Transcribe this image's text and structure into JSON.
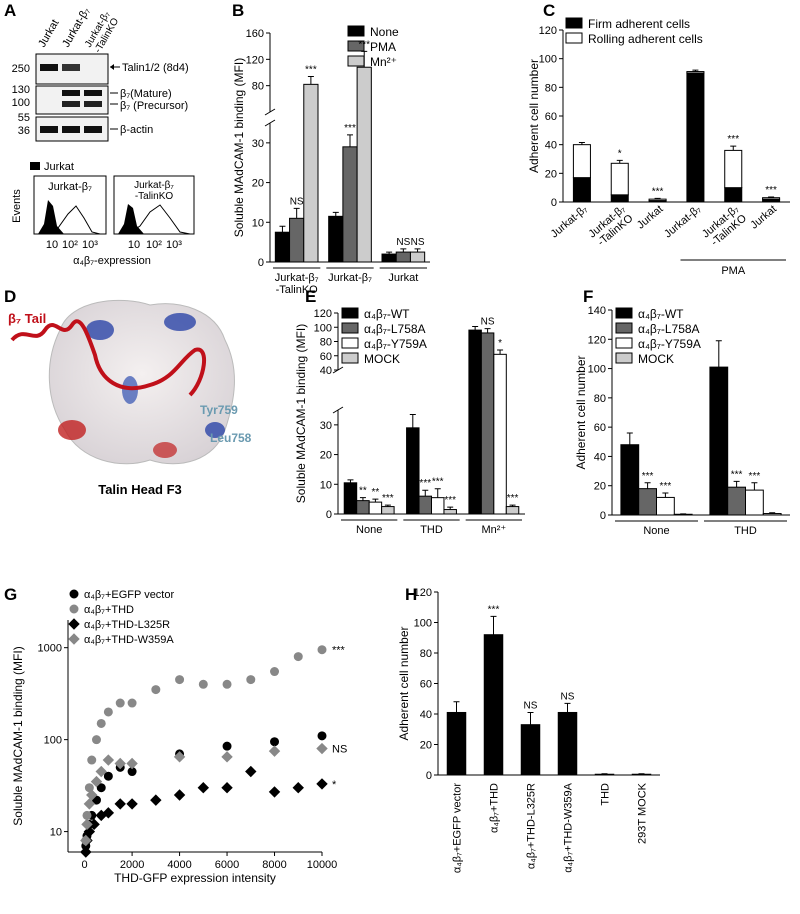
{
  "blot": {
    "panel": "A",
    "lanes": [
      "Jurkat",
      "Jurkat-β₇",
      "Jurkat-β₇\n-TalinKO"
    ],
    "mw": [
      "250",
      "130",
      "100",
      "55",
      "36"
    ],
    "bands": [
      "Talin1/2 (8d4)",
      "β₇(Mature)",
      "β₇ (Precursor)",
      "β-actin"
    ],
    "flow": {
      "legend": "Jurkat",
      "plots": [
        "Jurkat-β₇",
        "Jurkat-β₇\n-TalinKO"
      ],
      "ylabel": "Events",
      "xticks": [
        "10",
        "10²",
        "10³"
      ],
      "xlabel": "α₄β₇-expression"
    }
  },
  "structure": {
    "panel": "D",
    "labels": [
      "β₇ Tail",
      "Tyr759",
      "Leu758"
    ],
    "caption": "Talin Head F3"
  },
  "chart_data": [
    {
      "type": "bar",
      "panel": "B",
      "ylabel": "Soluble MAdCAM-1 binding (MFI)",
      "categories": [
        "Jurkat-β₇\n-TalinKO",
        "Jurkat-β₇",
        "Jurkat"
      ],
      "series": [
        {
          "name": "None",
          "color": "#000000",
          "values": [
            7.5,
            11.5,
            2
          ],
          "errors": [
            1.5,
            1,
            0.5
          ],
          "annotations": [
            null,
            null,
            null
          ]
        },
        {
          "name": "PMA",
          "color": "#666666",
          "values": [
            11,
            29,
            2.5
          ],
          "errors": [
            2.5,
            3,
            0.8
          ],
          "annotations": [
            "NS",
            "***",
            "NS"
          ]
        },
        {
          "name": "Mn²⁺",
          "color": "#cccccc",
          "values": [
            82,
            108,
            2.5
          ],
          "errors": [
            12,
            24,
            0.8
          ],
          "annotations": [
            "***",
            "***",
            "NS"
          ]
        }
      ],
      "ylim": [
        0,
        160
      ],
      "yticks": [
        0,
        10,
        20,
        30,
        80,
        120,
        160
      ],
      "axis_break": [
        35,
        40
      ]
    },
    {
      "type": "bar",
      "panel": "C",
      "stacked": true,
      "ylabel": "Adherent cell number",
      "categories": [
        "Jurkat-β₇",
        "Jurkat-β₇\n-TalinKO",
        "Jurkat",
        "Jurkat-β₇",
        "Jurkat-β₇\n-TalinKO",
        "Jurkat"
      ],
      "group_label": "PMA",
      "series": [
        {
          "name": "Firm adherent cells",
          "color": "#000000",
          "values": [
            17,
            5,
            1,
            90,
            10,
            2
          ],
          "errors": [
            1,
            0.8,
            0.3,
            1,
            1,
            0.5
          ]
        },
        {
          "name": "Rolling adherent cells",
          "color": "#ffffff",
          "values": [
            23,
            22,
            1,
            1,
            26,
            1
          ],
          "errors": [
            1.5,
            2,
            0.5,
            1,
            3,
            0.5
          ],
          "annotations": [
            null,
            "*",
            "***",
            null,
            "***",
            "***"
          ]
        }
      ],
      "ylim": [
        0,
        120
      ],
      "yticks": [
        0,
        20,
        40,
        60,
        80,
        100,
        120
      ]
    },
    {
      "type": "bar",
      "panel": "E",
      "ylabel": "Soluble MAdCAM-1 binding (MFI)",
      "categories": [
        "None",
        "THD",
        "Mn²⁺"
      ],
      "series": [
        {
          "name": "α₄β₇-WT",
          "color": "#000000",
          "values": [
            10.5,
            29,
            96
          ],
          "errors": [
            1,
            4.5,
            5
          ],
          "annotations": [
            null,
            null,
            null
          ]
        },
        {
          "name": "α₄β₇-L758A",
          "color": "#666666",
          "values": [
            4.5,
            6,
            92
          ],
          "errors": [
            1,
            2,
            6
          ],
          "annotations": [
            "**",
            "***",
            "NS"
          ]
        },
        {
          "name": "α₄β₇-Y759A",
          "color": "#ffffff",
          "values": [
            4,
            5.5,
            62
          ],
          "errors": [
            1,
            3,
            6
          ],
          "annotations": [
            "**",
            "***",
            "*"
          ]
        },
        {
          "name": "MOCK",
          "color": "#cccccc",
          "values": [
            2.5,
            1.5,
            2.5
          ],
          "errors": [
            0.5,
            0.8,
            0.5
          ],
          "annotations": [
            "***",
            "***",
            "***"
          ]
        }
      ],
      "ylim": [
        0,
        120
      ],
      "yticks": [
        0,
        10,
        20,
        30,
        40,
        60,
        80,
        100,
        120
      ],
      "axis_break": [
        35,
        40
      ]
    },
    {
      "type": "bar",
      "panel": "F",
      "ylabel": "Adherent cell number",
      "categories": [
        "None",
        "THD"
      ],
      "series": [
        {
          "name": "α₄β₇-WT",
          "color": "#000000",
          "values": [
            48,
            101
          ],
          "errors": [
            8,
            18
          ],
          "annotations": [
            null,
            null
          ]
        },
        {
          "name": "α₄β₇-L758A",
          "color": "#666666",
          "values": [
            18,
            19
          ],
          "errors": [
            4,
            4
          ],
          "annotations": [
            "***",
            "***"
          ]
        },
        {
          "name": "α₄β₇-Y759A",
          "color": "#ffffff",
          "values": [
            12,
            17
          ],
          "errors": [
            3,
            5
          ],
          "annotations": [
            "***",
            "***"
          ]
        },
        {
          "name": "MOCK",
          "color": "#cccccc",
          "values": [
            0.5,
            1
          ],
          "errors": [
            0.3,
            0.5
          ],
          "annotations": [
            null,
            null
          ]
        }
      ],
      "ylim": [
        0,
        140
      ],
      "yticks": [
        0,
        20,
        40,
        60,
        80,
        100,
        120,
        140
      ]
    },
    {
      "type": "scatter",
      "panel": "G",
      "ylabel": "Soluble MAdCAM-1 binding (MFI)",
      "xlabel": "THD-GFP expression intensity",
      "log": true,
      "series": [
        {
          "name": "α₄β₇+EGFP vector",
          "color": "#000000",
          "marker": "circle",
          "x": [
            50,
            100,
            200,
            300,
            500,
            700,
            1000,
            1500,
            2000,
            4000,
            6000,
            8000,
            10000
          ],
          "values": [
            7,
            9,
            12,
            15,
            22,
            30,
            40,
            50,
            45,
            70,
            85,
            95,
            110
          ]
        },
        {
          "name": "α₄β₇+THD",
          "color": "#888888",
          "marker": "circle",
          "x": [
            50,
            100,
            200,
            300,
            500,
            700,
            1000,
            1500,
            2000,
            3000,
            4000,
            5000,
            6000,
            7000,
            8000,
            9000,
            10000
          ],
          "values": [
            8,
            15,
            30,
            60,
            100,
            150,
            200,
            250,
            250,
            350,
            450,
            400,
            400,
            450,
            550,
            800,
            950
          ],
          "annotation": "***"
        },
        {
          "name": "α₄β₇+THD-L325R",
          "color": "#000000",
          "marker": "diamond",
          "x": [
            50,
            100,
            200,
            400,
            700,
            1000,
            1500,
            2000,
            3000,
            4000,
            5000,
            6000,
            7000,
            8000,
            9000,
            10000
          ],
          "values": [
            6,
            8,
            10,
            12,
            15,
            16,
            20,
            20,
            22,
            25,
            30,
            30,
            45,
            27,
            30,
            33
          ],
          "annotation": "*"
        },
        {
          "name": "α₄β₇+THD-W359A",
          "color": "#888888",
          "marker": "diamond",
          "x": [
            50,
            100,
            200,
            300,
            500,
            700,
            1000,
            1500,
            2000,
            4000,
            6000,
            8000,
            10000
          ],
          "values": [
            8,
            12,
            20,
            25,
            35,
            45,
            60,
            55,
            55,
            65,
            65,
            75,
            80
          ],
          "annotation": "NS"
        }
      ],
      "xlim": [
        -700,
        10000
      ],
      "xticks": [
        0,
        2000,
        4000,
        6000,
        8000,
        10000
      ],
      "ylim": [
        6,
        2000
      ],
      "yticks": [
        10,
        100,
        1000
      ]
    },
    {
      "type": "bar",
      "panel": "H",
      "ylabel": "Adherent cell number",
      "categories": [
        "α₄β₇+EGFP vector",
        "α₄β₇+THD",
        "α₄β₇+THD-L325R",
        "α₄β₇+THD-W359A",
        "THD",
        "293T MOCK"
      ],
      "series": [
        {
          "color": "#000000",
          "values": [
            41,
            92,
            33,
            41,
            0.5,
            0.5
          ],
          "errors": [
            7,
            12,
            8,
            6,
            0.3,
            0.3
          ],
          "annotations": [
            null,
            "***",
            "NS",
            "NS",
            null,
            null
          ]
        }
      ],
      "ylim": [
        0,
        120
      ],
      "yticks": [
        0,
        20,
        40,
        60,
        80,
        100,
        120
      ]
    }
  ]
}
